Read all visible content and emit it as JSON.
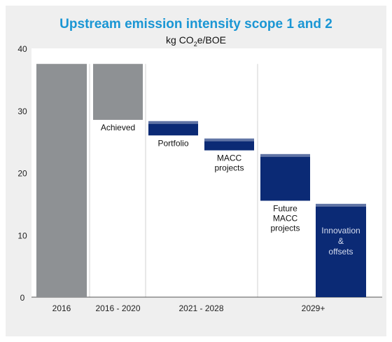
{
  "chart_data": {
    "type": "waterfall",
    "title": "Upstream emission intensity scope 1 and 2",
    "unit_label": {
      "prefix": "kg CO",
      "sub": "2",
      "suffix": "e/BOE"
    },
    "ylim": [
      0,
      40
    ],
    "yticks": [
      0,
      10,
      20,
      30,
      40
    ],
    "grid": false,
    "bars": [
      {
        "label": "",
        "bottom": 0,
        "top": 37.5,
        "color": "#8e9194",
        "text_lines": [],
        "text_position": "below"
      },
      {
        "label": "Achieved",
        "bottom": 28.5,
        "top": 37.5,
        "color": "#8e9194",
        "text_lines": [
          "Achieved"
        ],
        "text_position": "below"
      },
      {
        "label": "Portfolio",
        "bottom": 26.0,
        "top": 28.3,
        "color": "#0b2a75",
        "text_lines": [
          "Portfolio"
        ],
        "text_position": "below"
      },
      {
        "label": "MACC projects",
        "bottom": 23.6,
        "top": 25.5,
        "color": "#0b2a75",
        "text_lines": [
          "MACC",
          "projects"
        ],
        "text_position": "below"
      },
      {
        "label": "Future MACC projects",
        "bottom": 15.5,
        "top": 23.0,
        "color": "#0b2a75",
        "text_lines": [
          "Future",
          "MACC",
          "projects"
        ],
        "text_position": "below"
      },
      {
        "label": "Innovation & offsets",
        "bottom": 0,
        "top": 15.0,
        "color": "#0b2a75",
        "text_lines": [
          "Innovation",
          "&",
          "offsets"
        ],
        "text_position": "inside"
      }
    ],
    "period_labels": [
      "2016",
      "2016 - 2020",
      "2021 - 2028",
      "2029+"
    ]
  }
}
